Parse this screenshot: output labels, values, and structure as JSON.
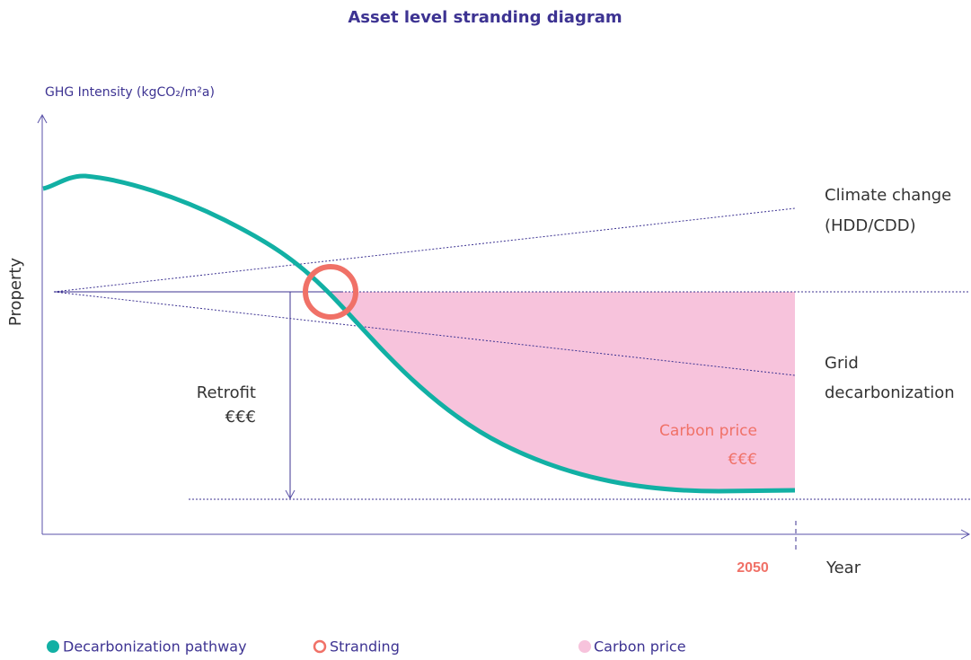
{
  "title": "Asset level stranding diagram",
  "axes": {
    "y_label": "GHG Intensity (kgCO₂/m²a)",
    "side_label": "Property",
    "x_label": "Year",
    "x_marker": "2050"
  },
  "annotations": {
    "climate_change": [
      "Climate change",
      "(HDD/CDD)"
    ],
    "grid_decarbonization": [
      "Grid",
      "decarbonization"
    ],
    "retrofit": [
      "Retrofit",
      "€€€"
    ],
    "carbon_price": [
      "Carbon price",
      "€€€"
    ]
  },
  "legend": [
    {
      "label": "Decarbonization pathway"
    },
    {
      "label": "Stranding"
    },
    {
      "label": "Carbon price"
    }
  ]
}
